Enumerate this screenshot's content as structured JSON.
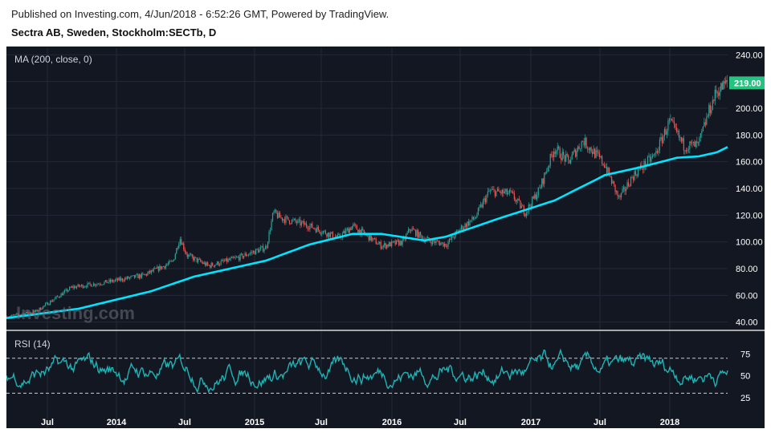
{
  "header": {
    "published": "Published on Investing.com, 4/Jun/2018 - 6:52:26 GMT, Powered by TradingView.",
    "symbol": "Sectra AB, Sweden, Stockholm:SECTb, D"
  },
  "watermark": "Investing.com",
  "colors": {
    "background": "#131722",
    "grid": "#232838",
    "candle_up": "#26a69a",
    "candle_down": "#ef5350",
    "ma": "#00e5ff",
    "rsi": "#1fb3b3",
    "last_price_tag": "#26c281"
  },
  "chart_data": [
    {
      "type": "candlestick",
      "indicator_label": "MA (200, close, 0)",
      "ylim": [
        35,
        245
      ],
      "y_ticks": [
        "40.00",
        "60.00",
        "80.00",
        "100.00",
        "120.00",
        "140.00",
        "160.00",
        "180.00",
        "200.00",
        "220.00",
        "240.00"
      ],
      "last_price_label": "219.00",
      "last_price": 219,
      "x_ticks": [
        "Jul",
        "2014",
        "Jul",
        "2015",
        "Jul",
        "2016",
        "Jul",
        "2017",
        "Jul",
        "2018"
      ],
      "price_anchors": [
        [
          0.0,
          44
        ],
        [
          0.04,
          48
        ],
        [
          0.09,
          66
        ],
        [
          0.14,
          70
        ],
        [
          0.19,
          75
        ],
        [
          0.23,
          85
        ],
        [
          0.24,
          103
        ],
        [
          0.25,
          90
        ],
        [
          0.28,
          82
        ],
        [
          0.32,
          88
        ],
        [
          0.36,
          96
        ],
        [
          0.37,
          122
        ],
        [
          0.38,
          118
        ],
        [
          0.42,
          112
        ],
        [
          0.46,
          103
        ],
        [
          0.48,
          112
        ],
        [
          0.52,
          97
        ],
        [
          0.55,
          100
        ],
        [
          0.56,
          110
        ],
        [
          0.58,
          102
        ],
        [
          0.61,
          98
        ],
        [
          0.63,
          110
        ],
        [
          0.65,
          118
        ],
        [
          0.67,
          138
        ],
        [
          0.7,
          136
        ],
        [
          0.72,
          122
        ],
        [
          0.74,
          140
        ],
        [
          0.76,
          170
        ],
        [
          0.78,
          160
        ],
        [
          0.8,
          176
        ],
        [
          0.83,
          158
        ],
        [
          0.85,
          132
        ],
        [
          0.87,
          150
        ],
        [
          0.9,
          165
        ],
        [
          0.92,
          190
        ],
        [
          0.94,
          172
        ],
        [
          0.96,
          172
        ],
        [
          0.975,
          198
        ],
        [
          0.985,
          212
        ],
        [
          1.0,
          219
        ]
      ],
      "ma_anchors": [
        [
          0.0,
          43
        ],
        [
          0.1,
          50
        ],
        [
          0.2,
          63
        ],
        [
          0.26,
          74
        ],
        [
          0.36,
          86
        ],
        [
          0.42,
          98
        ],
        [
          0.48,
          106
        ],
        [
          0.52,
          106
        ],
        [
          0.58,
          101
        ],
        [
          0.61,
          104
        ],
        [
          0.68,
          117
        ],
        [
          0.76,
          131
        ],
        [
          0.83,
          150
        ],
        [
          0.88,
          156
        ],
        [
          0.93,
          163
        ],
        [
          0.96,
          164
        ],
        [
          0.985,
          167
        ],
        [
          1.0,
          171
        ]
      ]
    },
    {
      "type": "line",
      "indicator_label": "RSI (14)",
      "ylim": [
        12,
        100
      ],
      "y_ticks": [
        "25",
        "50",
        "75"
      ],
      "bands": [
        30,
        70
      ]
    }
  ]
}
